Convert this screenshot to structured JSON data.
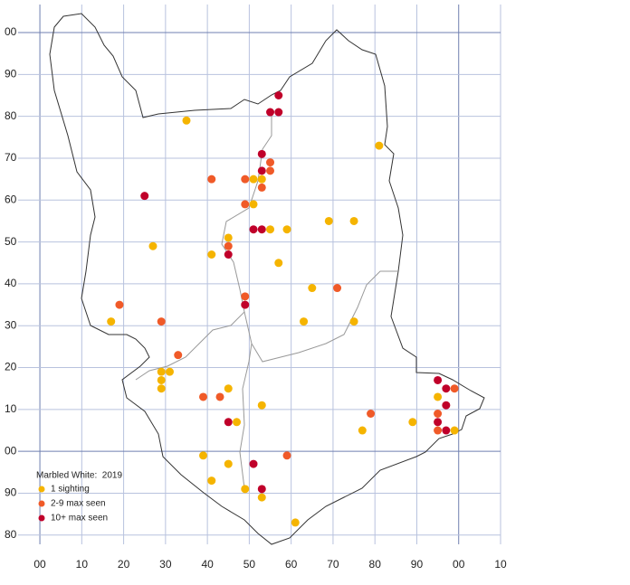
{
  "chart_data": {
    "type": "scatter",
    "legend_title": "Marbled White:  2019",
    "legend": "lower left",
    "grid": true,
    "xlim": [
      -5.2,
      110
    ],
    "ylim": [
      -22.2,
      106.7
    ],
    "xticks": [
      {
        "value": 0,
        "label": "00"
      },
      10,
      20,
      30,
      40,
      50,
      60,
      70,
      80,
      90,
      {
        "value": 100,
        "label": "00"
      },
      {
        "value": 110,
        "label": "10"
      }
    ],
    "yticks": [
      {
        "value": 100,
        "label": "00"
      },
      90,
      80,
      70,
      60,
      50,
      40,
      30,
      20,
      10,
      {
        "value": 0,
        "label": "00"
      },
      {
        "value": -10,
        "label": "90"
      },
      {
        "value": -20,
        "label": "80"
      }
    ],
    "series": [
      {
        "name": "1 sighting",
        "color": "#f5b400",
        "x": [
          35,
          81,
          51,
          53,
          51,
          69,
          75,
          55,
          59,
          27,
          45,
          41,
          57,
          65,
          63,
          75,
          17,
          29,
          31,
          29,
          29,
          45,
          53,
          47,
          77,
          89,
          95,
          99,
          39,
          45,
          41,
          49,
          53,
          61
        ],
        "values": [
          79,
          73,
          65,
          65,
          59,
          55,
          55,
          53,
          53,
          49,
          51,
          47,
          45,
          39,
          31,
          31,
          31,
          19,
          19,
          17,
          15,
          15,
          11,
          7,
          5,
          7,
          13,
          5,
          -1,
          -3,
          -7,
          -9,
          -11,
          -17
        ]
      },
      {
        "name": "2-9 max seen",
        "color": "#f05a28",
        "x": [
          55,
          55,
          49,
          41,
          53,
          49,
          45,
          49,
          71,
          19,
          29,
          33,
          39,
          43,
          79,
          59,
          99,
          95,
          95
        ],
        "values": [
          69,
          67,
          65,
          65,
          63,
          59,
          49,
          37,
          39,
          35,
          31,
          23,
          13,
          13,
          9,
          -1,
          15,
          9,
          5
        ]
      },
      {
        "name": "10+ max seen",
        "color": "#c0002a",
        "x": [
          57,
          55,
          57,
          53,
          53,
          25,
          51,
          53,
          45,
          49,
          45,
          51,
          53,
          95,
          97,
          97,
          95,
          97
        ],
        "values": [
          85,
          81,
          81,
          71,
          67,
          61,
          53,
          53,
          47,
          35,
          7,
          -3,
          -9,
          17,
          15,
          11,
          7,
          5
        ]
      }
    ]
  }
}
